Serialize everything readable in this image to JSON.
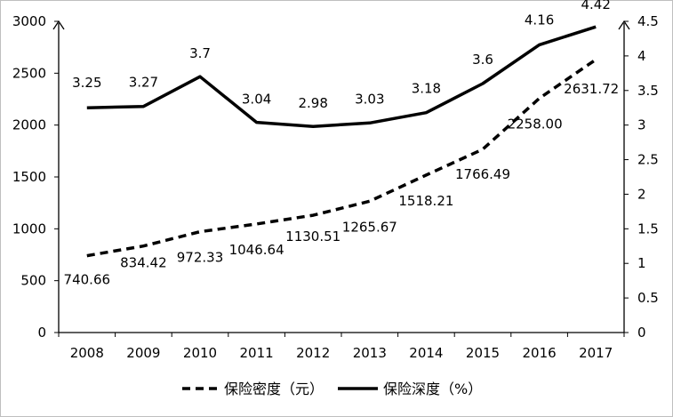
{
  "chart_data": {
    "type": "line",
    "categories": [
      "2008",
      "2009",
      "2010",
      "2011",
      "2012",
      "2013",
      "2014",
      "2015",
      "2016",
      "2017"
    ],
    "series": [
      {
        "name": "保险密度（元）",
        "axis": "left",
        "line_style": "dashed",
        "values": [
          740.66,
          834.42,
          972.33,
          1046.64,
          1130.51,
          1265.67,
          1518.21,
          1766.49,
          2258.0,
          2631.72
        ],
        "labels": [
          "740.66",
          "834.42",
          "972.33",
          "1046.64",
          "1130.51",
          "1265.67",
          "1518.21",
          "1766.49",
          "2258.00",
          "2631.72"
        ]
      },
      {
        "name": "保险深度（%）",
        "axis": "right",
        "line_style": "solid",
        "values": [
          3.25,
          3.27,
          3.7,
          3.04,
          2.98,
          3.03,
          3.18,
          3.6,
          4.16,
          4.42
        ],
        "labels": [
          "3.25",
          "3.27",
          "3.7",
          "3.04",
          "2.98",
          "3.03",
          "3.18",
          "3.6",
          "4.16",
          "4.42"
        ]
      }
    ],
    "y_left": {
      "ylim": [
        0,
        3000
      ],
      "ticks": [
        0,
        500,
        1000,
        1500,
        2000,
        2500,
        3000
      ],
      "tick_labels": [
        "0",
        "500",
        "1000",
        "1500",
        "2000",
        "2500",
        "3000"
      ]
    },
    "y_right": {
      "ylim": [
        0,
        4.5
      ],
      "ticks": [
        0,
        0.5,
        1,
        1.5,
        2,
        2.5,
        3,
        3.5,
        4,
        4.5
      ],
      "tick_labels": [
        "0",
        "0.5",
        "1",
        "1.5",
        "2",
        "2.5",
        "3",
        "3.5",
        "4",
        "4.5"
      ]
    },
    "grid": false,
    "legend_position": "bottom",
    "title": "",
    "xlabel": "",
    "ylabel": ""
  }
}
